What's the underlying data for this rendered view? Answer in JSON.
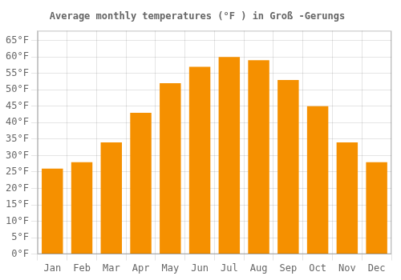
{
  "chart_data": {
    "type": "bar",
    "title": "Average monthly temperatures (°F ) in Groß -Gerungs",
    "categories": [
      "Jan",
      "Feb",
      "Mar",
      "Apr",
      "May",
      "Jun",
      "Jul",
      "Aug",
      "Sep",
      "Oct",
      "Nov",
      "Dec"
    ],
    "values": [
      26,
      28,
      34,
      43,
      52,
      57,
      60,
      59,
      53,
      45,
      34,
      28
    ],
    "color": "#F59000",
    "ylim": [
      0,
      68
    ],
    "yticks": [
      {
        "value": 0,
        "label": "0°F"
      },
      {
        "value": 5,
        "label": "5°F"
      },
      {
        "value": 10,
        "label": "10°F"
      },
      {
        "value": 15,
        "label": "15°F"
      },
      {
        "value": 20,
        "label": "20°F"
      },
      {
        "value": 25,
        "label": "25°F"
      },
      {
        "value": 30,
        "label": "30°F"
      },
      {
        "value": 35,
        "label": "35°F"
      },
      {
        "value": 40,
        "label": "40°F"
      },
      {
        "value": 45,
        "label": "45°F"
      },
      {
        "value": 50,
        "label": "50°F"
      },
      {
        "value": 55,
        "label": "55°F"
      },
      {
        "value": 60,
        "label": "60°F"
      },
      {
        "value": 65,
        "label": "65°F"
      }
    ],
    "grid": true
  }
}
